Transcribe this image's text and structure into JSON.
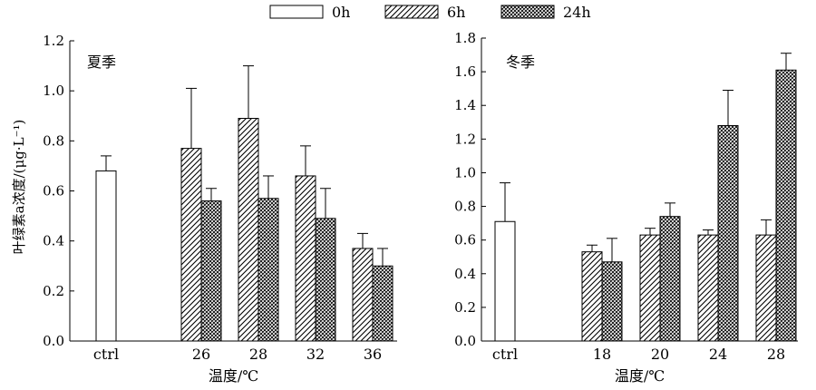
{
  "legend": [
    {
      "name": "0h",
      "pattern": "open"
    },
    {
      "name": "6h",
      "pattern": "diagonal"
    },
    {
      "name": "24h",
      "pattern": "crosshatch"
    }
  ],
  "shared_ylabel": "叶绿素a浓度/(μg·L⁻¹)",
  "chart_data": [
    {
      "type": "bar",
      "title": "夏季",
      "xlabel": "温度/℃",
      "ylim": [
        0,
        1.2
      ],
      "yticks": [
        "0.0",
        "0.2",
        "0.4",
        "0.6",
        "0.8",
        "1.0",
        "1.2"
      ],
      "categories": [
        "ctrl",
        "26",
        "28",
        "32",
        "36"
      ],
      "series": [
        {
          "name": "0h",
          "values": [
            0.68,
            null,
            null,
            null,
            null
          ],
          "errors": [
            0.06,
            null,
            null,
            null,
            null
          ]
        },
        {
          "name": "6h",
          "values": [
            null,
            0.77,
            0.89,
            0.66,
            0.37
          ],
          "errors": [
            null,
            0.24,
            0.21,
            0.12,
            0.06
          ]
        },
        {
          "name": "24h",
          "values": [
            null,
            0.56,
            0.57,
            0.49,
            0.3
          ],
          "errors": [
            null,
            0.05,
            0.09,
            0.12,
            0.07
          ]
        }
      ]
    },
    {
      "type": "bar",
      "title": "冬季",
      "xlabel": "温度/℃",
      "ylim": [
        0,
        1.8
      ],
      "yticks": [
        "0.0",
        "0.2",
        "0.4",
        "0.6",
        "0.8",
        "1.0",
        "1.2",
        "1.4",
        "1.6",
        "1.8"
      ],
      "categories": [
        "ctrl",
        "18",
        "20",
        "24",
        "28"
      ],
      "series": [
        {
          "name": "0h",
          "values": [
            0.71,
            null,
            null,
            null,
            null
          ],
          "errors": [
            0.23,
            null,
            null,
            null,
            null
          ]
        },
        {
          "name": "6h",
          "values": [
            null,
            0.53,
            0.63,
            0.63,
            0.63
          ],
          "errors": [
            null,
            0.04,
            0.04,
            0.03,
            0.09
          ]
        },
        {
          "name": "24h",
          "values": [
            null,
            0.47,
            0.74,
            1.28,
            1.61
          ],
          "errors": [
            null,
            0.14,
            0.08,
            0.21,
            0.1
          ]
        }
      ]
    }
  ]
}
